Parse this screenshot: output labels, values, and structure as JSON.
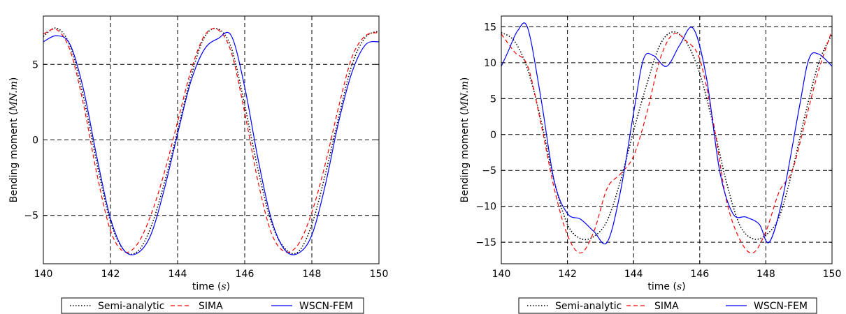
{
  "chart_data": [
    {
      "type": "line",
      "xlabel": "time",
      "xlabel_unit": "s",
      "ylabel": "Bending moment",
      "ylabel_unit": "MN.m",
      "xlim": [
        140,
        150
      ],
      "ylim": [
        -8.2,
        8.2
      ],
      "xticks": [
        140,
        142,
        144,
        146,
        148,
        150
      ],
      "yticks": [
        -5,
        0,
        5
      ],
      "ytick_labels": [
        "−5",
        "0",
        "5"
      ],
      "grid": true,
      "legend_position": "bottom-center",
      "series": [
        {
          "name": "Semi-analytic",
          "color": "#000000",
          "style": "dotted",
          "x": [
            140,
            140.4,
            140.8,
            141.2,
            141.6,
            142,
            142.4,
            142.8,
            143.2,
            143.6,
            144,
            144.4,
            144.8,
            145.2,
            145.6,
            146,
            146.4,
            146.8,
            147.2,
            147.6,
            148,
            148.4,
            148.8,
            149.2,
            149.6,
            150
          ],
          "y": [
            6.85,
            7.4,
            6.2,
            2.8,
            -1.6,
            -5.4,
            -7.3,
            -7.4,
            -5.8,
            -2.9,
            0.6,
            4.2,
            6.8,
            7.35,
            6.1,
            2.3,
            -2.0,
            -5.5,
            -7.2,
            -7.4,
            -5.6,
            -2.3,
            1.5,
            5.0,
            6.8,
            7.2
          ]
        },
        {
          "name": "SIMA",
          "color": "#ff0000",
          "style": "dashed",
          "x": [
            140,
            140.4,
            140.8,
            141.2,
            141.6,
            142,
            142.4,
            142.8,
            143.2,
            143.6,
            144,
            144.4,
            144.8,
            145.2,
            145.6,
            146,
            146.4,
            146.8,
            147.2,
            147.6,
            148,
            148.4,
            148.8,
            149.2,
            149.6,
            150
          ],
          "y": [
            7.0,
            7.3,
            5.9,
            2.3,
            -2.3,
            -6.0,
            -7.4,
            -6.9,
            -5.0,
            -2.2,
            1.2,
            4.6,
            6.9,
            7.3,
            5.8,
            1.8,
            -2.8,
            -6.2,
            -7.4,
            -6.9,
            -4.8,
            -1.6,
            2.2,
            5.5,
            6.9,
            7.1
          ]
        },
        {
          "name": "WSCN-FEM",
          "color": "#0000ff",
          "style": "solid",
          "x": [
            140,
            140.4,
            140.8,
            141.2,
            141.6,
            142,
            142.4,
            142.8,
            143.2,
            143.6,
            144,
            144.4,
            144.8,
            145.2,
            145.6,
            146,
            146.4,
            146.8,
            147.2,
            147.6,
            148,
            148.4,
            148.8,
            149.2,
            149.6,
            150
          ],
          "y": [
            6.5,
            6.9,
            6.3,
            3.3,
            -1.2,
            -5.2,
            -7.3,
            -7.5,
            -6.3,
            -3.3,
            0.4,
            3.9,
            6.0,
            6.7,
            6.9,
            3.5,
            -1.3,
            -5.3,
            -7.3,
            -7.5,
            -6.3,
            -3.0,
            1.2,
            4.5,
            6.3,
            6.5
          ]
        }
      ],
      "legend": [
        "Semi-analytic",
        "SIMA",
        "WSCN-FEM"
      ]
    },
    {
      "type": "line",
      "xlabel": "time",
      "xlabel_unit": "s",
      "ylabel": "Bending moment",
      "ylabel_unit": "MN.m",
      "xlim": [
        140,
        150
      ],
      "ylim": [
        -18,
        16.5
      ],
      "xticks": [
        140,
        142,
        144,
        146,
        148,
        150
      ],
      "yticks": [
        -15,
        -10,
        -5,
        0,
        5,
        10,
        15
      ],
      "ytick_labels": [
        "−15",
        "−10",
        "−5",
        "0",
        "5",
        "10",
        "15"
      ],
      "grid": true,
      "legend_position": "bottom-center",
      "series": [
        {
          "name": "Semi-analytic",
          "color": "#000000",
          "style": "dotted",
          "x": [
            140,
            140.4,
            140.8,
            141.2,
            141.6,
            142,
            142.4,
            142.8,
            143.2,
            143.6,
            144,
            144.4,
            144.8,
            145.2,
            145.6,
            146,
            146.4,
            146.8,
            147.2,
            147.6,
            148,
            148.4,
            148.8,
            149.2,
            149.6,
            150
          ],
          "y": [
            14.2,
            13.0,
            9.0,
            2.0,
            -6.5,
            -12.5,
            -14.5,
            -14.2,
            -12.0,
            -6.5,
            0.5,
            7.0,
            12.5,
            14.3,
            12.8,
            8.5,
            1.5,
            -6.5,
            -12.5,
            -14.5,
            -14.0,
            -11.5,
            -5.0,
            3.0,
            10.0,
            14.0
          ]
        },
        {
          "name": "SIMA",
          "color": "#ff0000",
          "style": "dashed",
          "x": [
            140,
            140.4,
            140.8,
            141.2,
            141.6,
            142,
            142.4,
            142.8,
            143.2,
            143.6,
            144,
            144.4,
            144.8,
            145.2,
            145.6,
            146,
            146.4,
            146.8,
            147.2,
            147.6,
            148,
            148.4,
            148.8,
            149.2,
            149.6,
            150
          ],
          "y": [
            14.0,
            11.5,
            9.5,
            1.5,
            -7.5,
            -14.0,
            -16.5,
            -13.5,
            -7.5,
            -5.5,
            -3.0,
            3.0,
            10.5,
            14.0,
            13.0,
            10.5,
            2.0,
            -9.0,
            -14.5,
            -16.5,
            -13.5,
            -8.0,
            -5.0,
            2.0,
            9.0,
            14.5
          ]
        },
        {
          "name": "WSCN-FEM",
          "color": "#0000ff",
          "style": "solid",
          "x": [
            140,
            140.2,
            140.5,
            140.8,
            141.2,
            141.6,
            142,
            142.4,
            142.8,
            143.2,
            143.6,
            144,
            144.3,
            144.6,
            145,
            145.4,
            145.8,
            146.2,
            146.6,
            147,
            147.4,
            147.8,
            148.1,
            148.5,
            149,
            149.3,
            149.6,
            150
          ],
          "y": [
            9.5,
            11.5,
            14.5,
            14.8,
            5.0,
            -6.5,
            -11.0,
            -11.8,
            -13.5,
            -15.0,
            -8.0,
            3.0,
            10.5,
            11.0,
            9.5,
            12.5,
            14.8,
            8.0,
            -5.0,
            -11.0,
            -11.5,
            -12.5,
            -15.0,
            -9.0,
            3.5,
            10.5,
            11.2,
            9.5
          ]
        }
      ],
      "legend": [
        "Semi-analytic",
        "SIMA",
        "WSCN-FEM"
      ]
    }
  ]
}
